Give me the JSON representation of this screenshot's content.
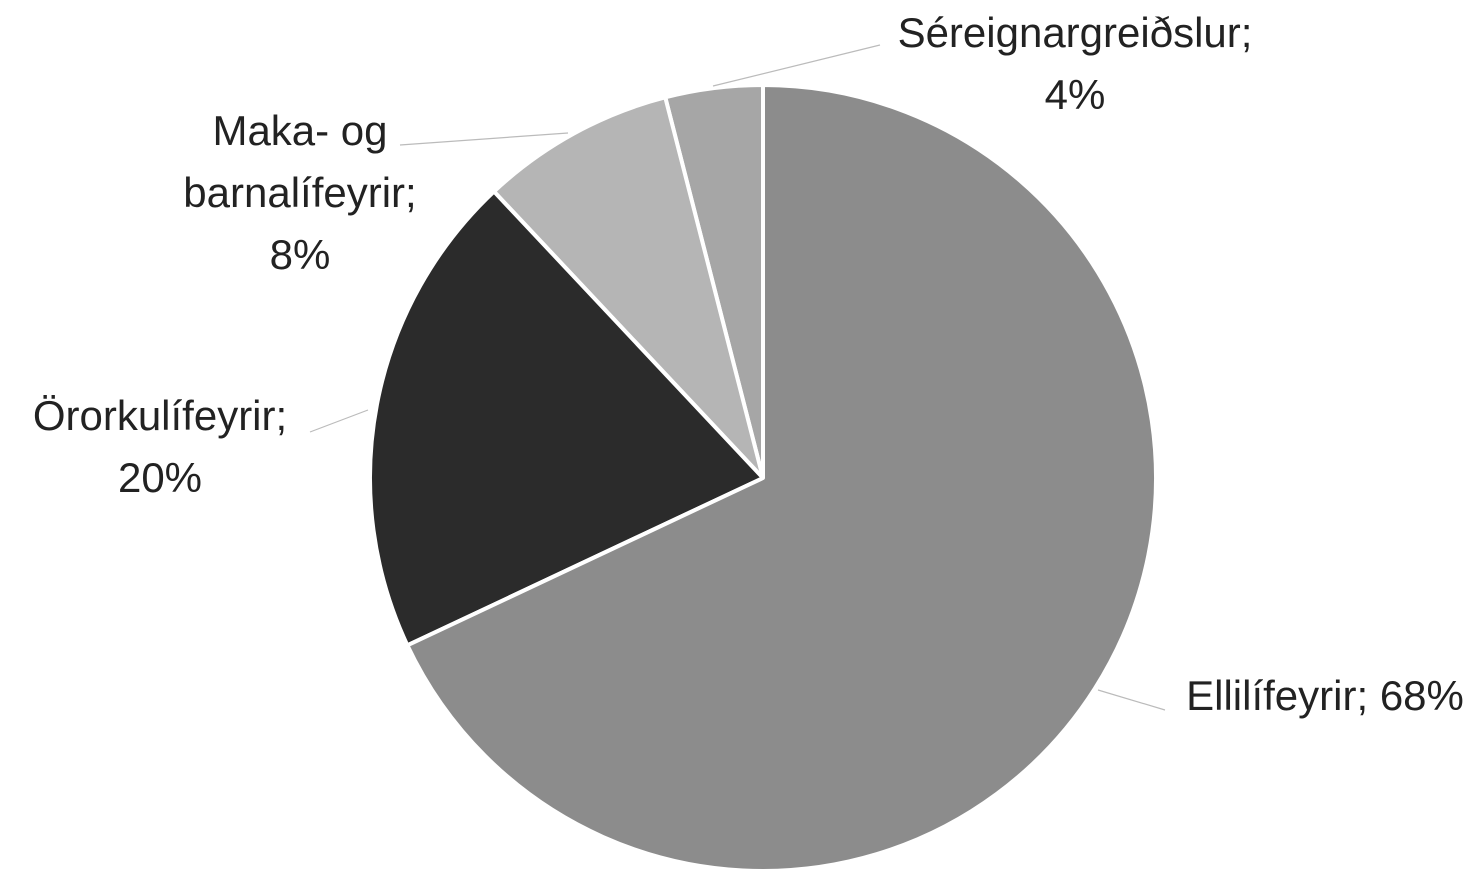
{
  "chart_data": {
    "type": "pie",
    "categories": [
      "Ellilífeyrir;",
      "Örorkulífeyrir;",
      "Maka- og barnalífeyrir;",
      "Séreignargreiðslur;"
    ],
    "values": [
      68,
      20,
      8,
      4
    ],
    "value_labels": [
      "68%",
      "20%",
      "8%",
      "4%"
    ],
    "colors": [
      "#8c8c8c",
      "#2b2b2b",
      "#b5b5b5",
      "#a6a6a6"
    ]
  }
}
